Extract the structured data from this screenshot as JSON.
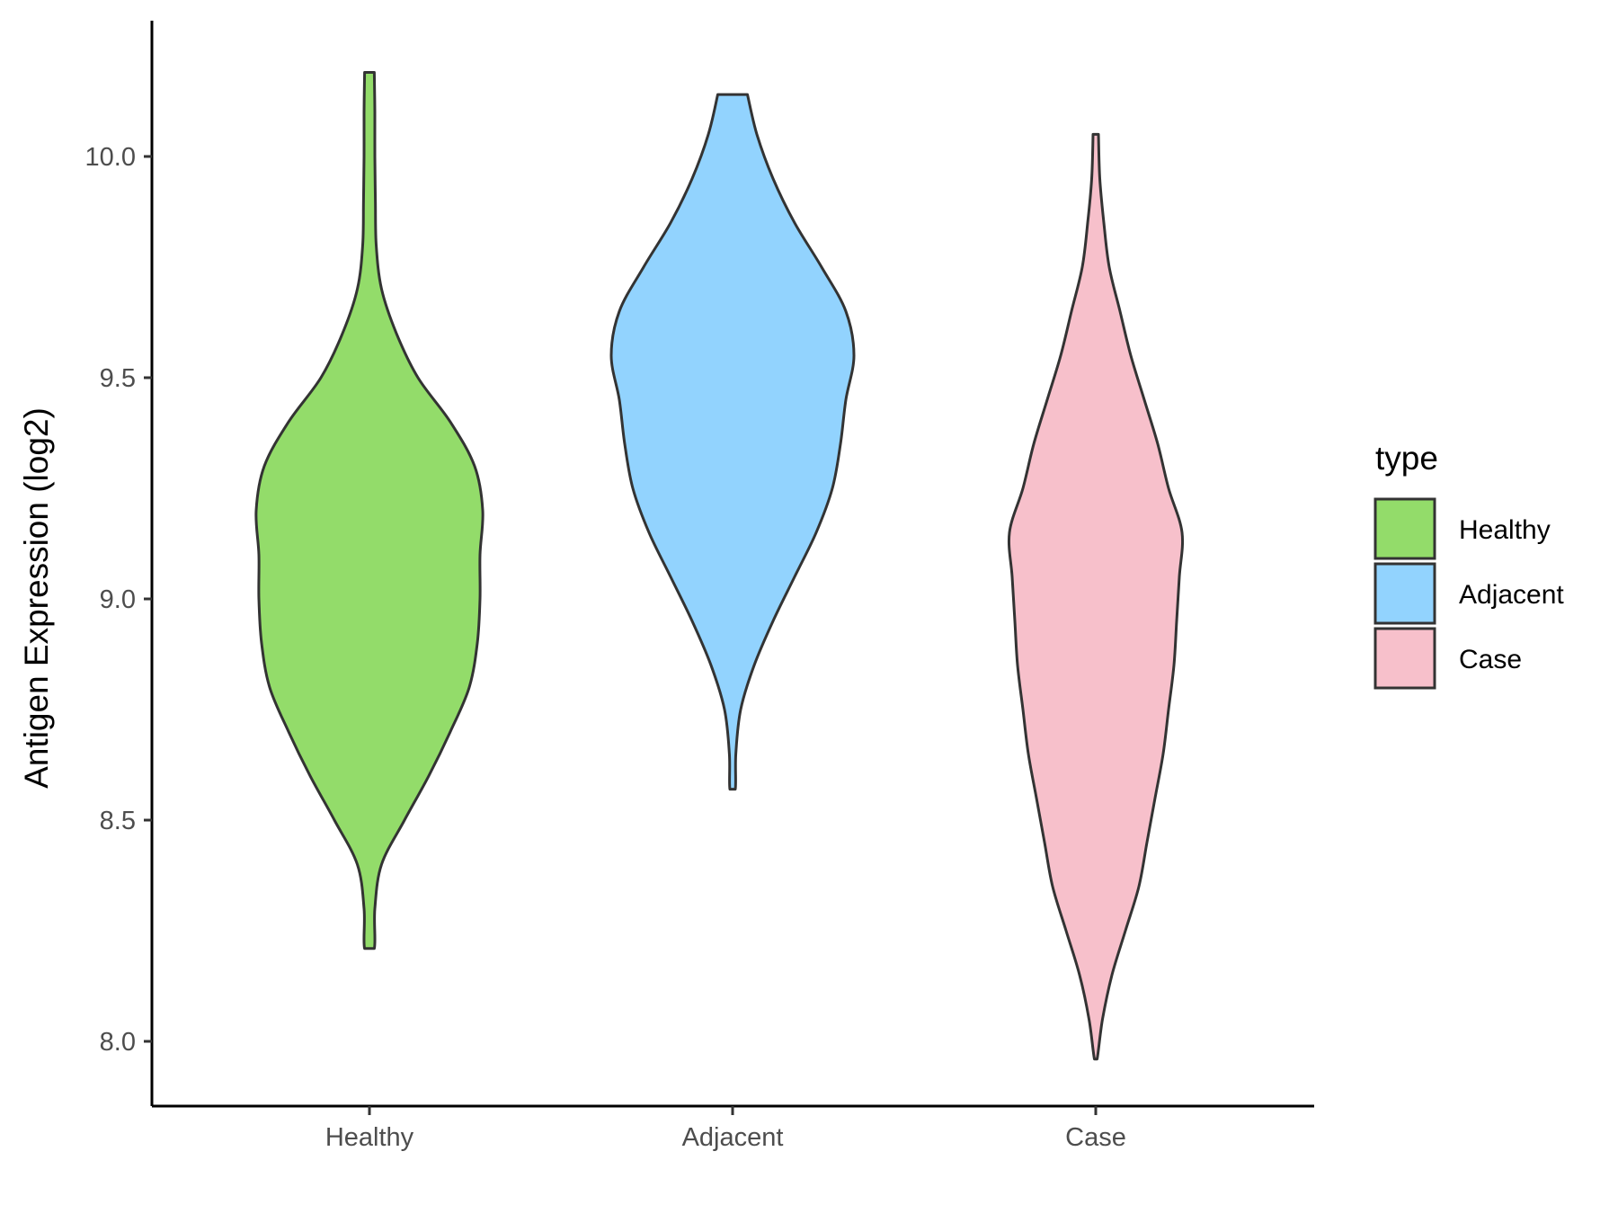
{
  "chart_data": {
    "type": "violin",
    "title": "",
    "xlabel": "",
    "ylabel": "Antigen Expression (log2)",
    "ylim": [
      7.85,
      10.3
    ],
    "yticks": [
      8.0,
      8.5,
      9.0,
      9.5,
      10.0
    ],
    "ytick_labels": [
      "8.0",
      "8.5",
      "9.0",
      "9.5",
      "10.0"
    ],
    "grid": false,
    "categories": [
      "Healthy",
      "Adjacent",
      "Case"
    ],
    "legend": {
      "title": "type",
      "placement": "right",
      "entries": [
        "Healthy",
        "Adjacent",
        "Case"
      ]
    },
    "series": [
      {
        "name": "Healthy",
        "color": "#93dc6a",
        "min": 8.21,
        "max": 10.19,
        "profile": [
          [
            8.21,
            0.018
          ],
          [
            8.3,
            0.02
          ],
          [
            8.4,
            0.045
          ],
          [
            8.5,
            0.13
          ],
          [
            8.6,
            0.22
          ],
          [
            8.7,
            0.3
          ],
          [
            8.8,
            0.37
          ],
          [
            8.9,
            0.4
          ],
          [
            9.0,
            0.41
          ],
          [
            9.1,
            0.41
          ],
          [
            9.2,
            0.42
          ],
          [
            9.3,
            0.39
          ],
          [
            9.4,
            0.3
          ],
          [
            9.5,
            0.18
          ],
          [
            9.6,
            0.1
          ],
          [
            9.7,
            0.045
          ],
          [
            9.8,
            0.025
          ],
          [
            9.9,
            0.022
          ],
          [
            10.0,
            0.02
          ],
          [
            10.1,
            0.02
          ],
          [
            10.19,
            0.018
          ]
        ]
      },
      {
        "name": "Adjacent",
        "color": "#92d3fe",
        "min": 8.57,
        "max": 10.14,
        "profile": [
          [
            8.57,
            0.01
          ],
          [
            8.65,
            0.012
          ],
          [
            8.75,
            0.03
          ],
          [
            8.85,
            0.08
          ],
          [
            8.95,
            0.15
          ],
          [
            9.05,
            0.23
          ],
          [
            9.15,
            0.31
          ],
          [
            9.25,
            0.37
          ],
          [
            9.35,
            0.4
          ],
          [
            9.45,
            0.42
          ],
          [
            9.55,
            0.45
          ],
          [
            9.65,
            0.42
          ],
          [
            9.75,
            0.33
          ],
          [
            9.85,
            0.23
          ],
          [
            9.95,
            0.15
          ],
          [
            10.05,
            0.09
          ],
          [
            10.14,
            0.055
          ]
        ]
      },
      {
        "name": "Case",
        "color": "#f7c0cb",
        "min": 7.96,
        "max": 10.05,
        "profile": [
          [
            7.96,
            0.005
          ],
          [
            8.05,
            0.025
          ],
          [
            8.15,
            0.06
          ],
          [
            8.25,
            0.11
          ],
          [
            8.35,
            0.16
          ],
          [
            8.45,
            0.19
          ],
          [
            8.55,
            0.22
          ],
          [
            8.65,
            0.25
          ],
          [
            8.75,
            0.27
          ],
          [
            8.85,
            0.29
          ],
          [
            8.95,
            0.3
          ],
          [
            9.05,
            0.31
          ],
          [
            9.15,
            0.32
          ],
          [
            9.25,
            0.27
          ],
          [
            9.35,
            0.23
          ],
          [
            9.45,
            0.18
          ],
          [
            9.55,
            0.13
          ],
          [
            9.65,
            0.09
          ],
          [
            9.75,
            0.05
          ],
          [
            9.85,
            0.03
          ],
          [
            9.95,
            0.015
          ],
          [
            10.05,
            0.01
          ]
        ]
      }
    ]
  }
}
